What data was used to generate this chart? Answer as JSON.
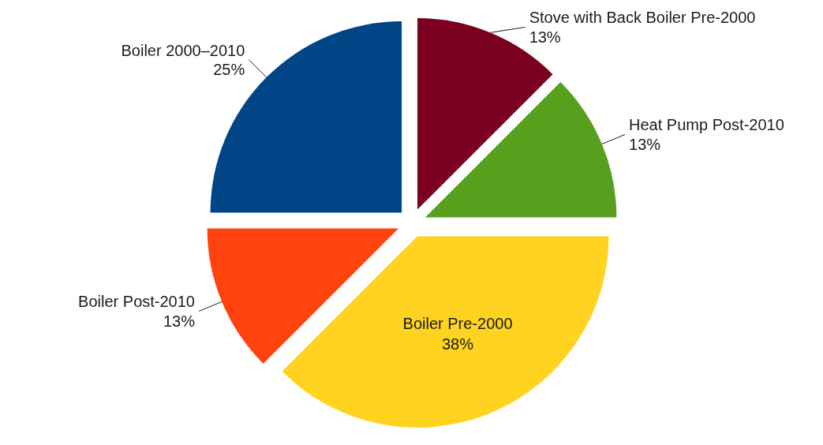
{
  "chart_data": {
    "type": "pie",
    "categories": [
      "Stove with Back Boiler Pre-2000",
      "Heat Pump Post-2010",
      "Boiler Pre-2000",
      "Boiler Post-2010",
      "Boiler 2000–2010"
    ],
    "values": [
      12.5,
      12.5,
      37.5,
      12.5,
      25
    ],
    "value_labels": [
      "13%",
      "13%",
      "38%",
      "13%",
      "25%"
    ],
    "colors": [
      "#7b0020",
      "#57a01e",
      "#ffd320",
      "#ff420e",
      "#004586"
    ],
    "data_labels": true
  }
}
